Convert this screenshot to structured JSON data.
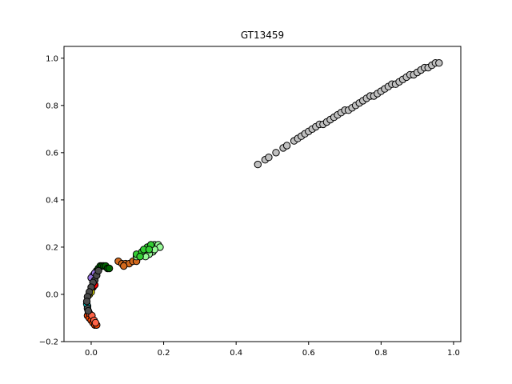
{
  "chart_data": {
    "type": "scatter",
    "title": "GT13459",
    "xlabel": "",
    "ylabel": "",
    "xlim": [
      -0.075,
      1.02
    ],
    "ylim": [
      -0.2,
      1.05
    ],
    "x_ticks": [
      0.0,
      0.2,
      0.4,
      0.6,
      0.8,
      1.0
    ],
    "x_tick_labels": [
      "0.0",
      "0.2",
      "0.4",
      "0.6",
      "0.8",
      "1.0"
    ],
    "y_ticks": [
      -0.2,
      0.0,
      0.2,
      0.4,
      0.6,
      0.8,
      1.0
    ],
    "y_tick_labels": [
      "−0.2",
      "0.0",
      "0.2",
      "0.4",
      "0.6",
      "0.8",
      "1.0"
    ],
    "grid": false,
    "legend": "none",
    "marker_edge_color": "#000000",
    "series": [
      {
        "color": "#c0c0c0",
        "points": [
          [
            0.46,
            0.55
          ],
          [
            0.48,
            0.57
          ],
          [
            0.49,
            0.58
          ],
          [
            0.51,
            0.6
          ],
          [
            0.53,
            0.62
          ],
          [
            0.54,
            0.63
          ],
          [
            0.56,
            0.65
          ],
          [
            0.57,
            0.66
          ],
          [
            0.58,
            0.67
          ],
          [
            0.59,
            0.68
          ],
          [
            0.6,
            0.69
          ],
          [
            0.61,
            0.7
          ],
          [
            0.62,
            0.71
          ],
          [
            0.63,
            0.72
          ],
          [
            0.64,
            0.72
          ],
          [
            0.65,
            0.73
          ],
          [
            0.66,
            0.74
          ],
          [
            0.67,
            0.75
          ],
          [
            0.68,
            0.76
          ],
          [
            0.69,
            0.77
          ],
          [
            0.7,
            0.78
          ],
          [
            0.71,
            0.78
          ],
          [
            0.72,
            0.79
          ],
          [
            0.73,
            0.8
          ],
          [
            0.74,
            0.81
          ],
          [
            0.75,
            0.82
          ],
          [
            0.76,
            0.83
          ],
          [
            0.77,
            0.84
          ],
          [
            0.78,
            0.84
          ],
          [
            0.79,
            0.85
          ],
          [
            0.8,
            0.86
          ],
          [
            0.81,
            0.87
          ],
          [
            0.82,
            0.88
          ],
          [
            0.83,
            0.89
          ],
          [
            0.84,
            0.89
          ],
          [
            0.85,
            0.9
          ],
          [
            0.86,
            0.91
          ],
          [
            0.87,
            0.92
          ],
          [
            0.88,
            0.93
          ],
          [
            0.89,
            0.93
          ],
          [
            0.9,
            0.94
          ],
          [
            0.91,
            0.95
          ],
          [
            0.92,
            0.96
          ],
          [
            0.93,
            0.96
          ],
          [
            0.94,
            0.97
          ],
          [
            0.95,
            0.98
          ],
          [
            0.96,
            0.98
          ]
        ]
      },
      {
        "color": "#006400",
        "points": [
          [
            0.01,
            0.09
          ],
          [
            0.015,
            0.1
          ],
          [
            0.02,
            0.11
          ],
          [
            0.025,
            0.12
          ],
          [
            0.03,
            0.12
          ],
          [
            0.035,
            0.12
          ],
          [
            0.04,
            0.12
          ],
          [
            0.045,
            0.11
          ],
          [
            0.05,
            0.11
          ]
        ]
      },
      {
        "color": "#d2691e",
        "points": [
          [
            0.075,
            0.14
          ],
          [
            0.085,
            0.13
          ],
          [
            0.095,
            0.13
          ],
          [
            0.105,
            0.13
          ],
          [
            0.115,
            0.14
          ],
          [
            0.125,
            0.14
          ],
          [
            0.09,
            0.12
          ]
        ]
      },
      {
        "color": "#98fb98",
        "points": [
          [
            0.125,
            0.16
          ],
          [
            0.135,
            0.17
          ],
          [
            0.145,
            0.18
          ],
          [
            0.155,
            0.19
          ],
          [
            0.165,
            0.2
          ],
          [
            0.175,
            0.21
          ],
          [
            0.185,
            0.21
          ],
          [
            0.19,
            0.2
          ],
          [
            0.17,
            0.18
          ],
          [
            0.16,
            0.17
          ],
          [
            0.15,
            0.16
          ],
          [
            0.175,
            0.19
          ]
        ]
      },
      {
        "color": "#32cd32",
        "points": [
          [
            0.125,
            0.17
          ],
          [
            0.14,
            0.18
          ],
          [
            0.155,
            0.2
          ],
          [
            0.165,
            0.21
          ],
          [
            0.145,
            0.19
          ],
          [
            0.135,
            0.16
          ],
          [
            0.16,
            0.19
          ]
        ]
      },
      {
        "color": "#9370db",
        "points": [
          [
            0.005,
            0.08
          ],
          [
            0.0,
            0.07
          ],
          [
            0.01,
            0.09
          ]
        ]
      },
      {
        "color": "#ff0000",
        "points": [
          [
            0.005,
            0.03
          ],
          [
            0.0,
            0.02
          ],
          [
            0.01,
            0.04
          ]
        ]
      },
      {
        "color": "#ffff00",
        "points": [
          [
            -0.005,
            0.0
          ],
          [
            0.0,
            0.01
          ]
        ]
      },
      {
        "color": "#00ffff",
        "points": [
          [
            -0.01,
            -0.05
          ],
          [
            -0.012,
            -0.04
          ]
        ]
      },
      {
        "color": "#ff4500",
        "points": [
          [
            -0.01,
            -0.09
          ],
          [
            -0.005,
            -0.1
          ],
          [
            0.0,
            -0.11
          ],
          [
            0.005,
            -0.12
          ],
          [
            0.01,
            -0.13
          ],
          [
            0.015,
            -0.13
          ]
        ]
      },
      {
        "color": "#ff6347",
        "points": [
          [
            -0.005,
            -0.08
          ],
          [
            0.002,
            -0.09
          ],
          [
            0.008,
            -0.11
          ],
          [
            0.012,
            -0.12
          ]
        ]
      },
      {
        "color": "#4b4b4b",
        "points": [
          [
            0.01,
            0.06
          ],
          [
            0.005,
            0.05
          ],
          [
            0.0,
            0.03
          ],
          [
            -0.005,
            0.01
          ],
          [
            -0.01,
            -0.01
          ],
          [
            -0.012,
            -0.03
          ],
          [
            -0.01,
            -0.06
          ],
          [
            -0.008,
            -0.07
          ],
          [
            0.015,
            0.08
          ],
          [
            0.02,
            0.1
          ]
        ]
      }
    ]
  }
}
